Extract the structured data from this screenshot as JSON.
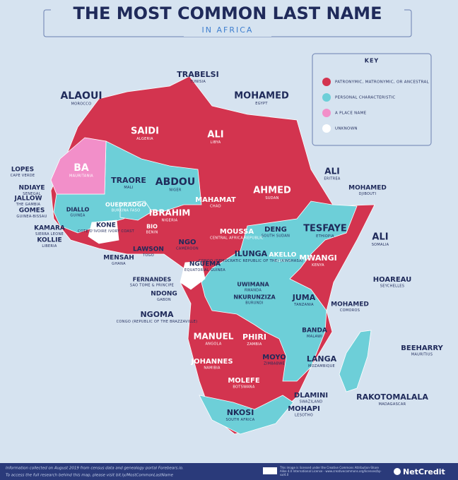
{
  "header": {
    "title": "THE MOST COMMON LAST NAME",
    "subtitle": "IN AFRICA"
  },
  "key": {
    "title": "KEY",
    "items": [
      {
        "label": "PATRONYMIC, MATRONYMIC, OR ANCESTRAL",
        "color": "#d3344f"
      },
      {
        "label": "PERSONAL CHARACTERISTIC",
        "color": "#6dcfd8"
      },
      {
        "label": "A PLACE NAME",
        "color": "#f28fc9"
      },
      {
        "label": "UNKNOWN",
        "color": "#ffffff"
      }
    ]
  },
  "labels": [
    {
      "name": "TRABELSI",
      "country": "TUNISIA"
    },
    {
      "name": "ALAOUI",
      "country": "MOROCCO"
    },
    {
      "name": "MOHAMED",
      "country": "EGYPT"
    },
    {
      "name": "SAIDI",
      "country": "ALGERIA"
    },
    {
      "name": "ALI",
      "country": "LIBYA"
    },
    {
      "name": "BA",
      "country": "MAURITANIA"
    },
    {
      "name": "TRAORE",
      "country": "MALI"
    },
    {
      "name": "ABDOU",
      "country": "NIGER"
    },
    {
      "name": "LOPES",
      "country": "CAPE VERDE"
    },
    {
      "name": "NDIAYE",
      "country": "SENEGAL"
    },
    {
      "name": "JALLOW",
      "country": "THE GAMBIA"
    },
    {
      "name": "GOMES",
      "country": "GUINEA-BISSAU"
    },
    {
      "name": "DIALLO",
      "country": "GUINEA"
    },
    {
      "name": "OUEDRAOGO",
      "country": "BURKINA FASO"
    },
    {
      "name": "KAMARA",
      "country": "SIERRA LEONE"
    },
    {
      "name": "KOLLIE",
      "country": "LIBERIA"
    },
    {
      "name": "KONE",
      "country": "COTE D'IVOIRE IVORY COAST"
    },
    {
      "name": "IBRAHIM",
      "country": "NIGERIA"
    },
    {
      "name": "BIO",
      "country": "BENIN"
    },
    {
      "name": "MAHAMAT",
      "country": "CHAD"
    },
    {
      "name": "AHMED",
      "country": "SUDAN"
    },
    {
      "name": "ALI",
      "country": "ERITREA"
    },
    {
      "name": "MOHAMED",
      "country": "DJIBOUTI"
    },
    {
      "name": "LAWSON",
      "country": "TOGO"
    },
    {
      "name": "MENSAH",
      "country": "GHANA"
    },
    {
      "name": "NGO",
      "country": "CAMEROON"
    },
    {
      "name": "MOUSSA",
      "country": "CENTRAL AFRICA REPUBLIC"
    },
    {
      "name": "DENG",
      "country": "SOUTH SUDAN"
    },
    {
      "name": "TESFAYE",
      "country": "ETHIOPIA"
    },
    {
      "name": "ALI",
      "country": "SOMALIA"
    },
    {
      "name": "AKELLO",
      "country": "UGANDA"
    },
    {
      "name": "MWANGI",
      "country": "KENYA"
    },
    {
      "name": "ILUNGA",
      "country": "CONGO (DEMOCRATIC REPUBLIC OF THE) (KINSHASA)"
    },
    {
      "name": "NGUEMA",
      "country": "EQUATORIAL GUINEA"
    },
    {
      "name": "FERNANDES",
      "country": "SAO TOME & PRINCIPE"
    },
    {
      "name": "NDONG",
      "country": "GABON"
    },
    {
      "name": "UWIMANA",
      "country": "RWANDA"
    },
    {
      "name": "NKURUNZIZA",
      "country": "BURUNDI"
    },
    {
      "name": "JUMA",
      "country": "TANZANIA"
    },
    {
      "name": "HOAREAU",
      "country": "SEYCHELLES"
    },
    {
      "name": "NGOMA",
      "country": "CONGO (REPUBLIC OF THE BRAZZAVILLE)"
    },
    {
      "name": "MOHAMED",
      "country": "COMOROS"
    },
    {
      "name": "BANDA",
      "country": "MALAWI"
    },
    {
      "name": "MANUEL",
      "country": "ANGOLA"
    },
    {
      "name": "PHIRI",
      "country": "ZAMBIA"
    },
    {
      "name": "JOHANNES",
      "country": "NAMIBIA"
    },
    {
      "name": "MOYO",
      "country": "ZIMBABWE"
    },
    {
      "name": "LANGA",
      "country": "MOZAMBIQUE"
    },
    {
      "name": "BEEHARRY",
      "country": "MAURITIUS"
    },
    {
      "name": "MOLEFE",
      "country": "BOTSWANA"
    },
    {
      "name": "DLAMINI",
      "country": "SWAZILAND"
    },
    {
      "name": "RAKOTOMALALA",
      "country": "MADAGASCAR"
    },
    {
      "name": "MOHAPI",
      "country": "LESOTHO"
    },
    {
      "name": "NKOSI",
      "country": "SOUTH AFRICA"
    }
  ],
  "footer": {
    "line1": "Information collected on August 2019 from census data and genealogy portal Forebears.io.",
    "line2": "To access the full research behind this map, please visit bit.ly/MostCommonLastName",
    "license": "This image is licensed under the Creative Commons Attribution-Share Alike 4.0 International License - www.creativecommons.org/licenses/by-sa/4.0",
    "brand": "NetCredit"
  }
}
